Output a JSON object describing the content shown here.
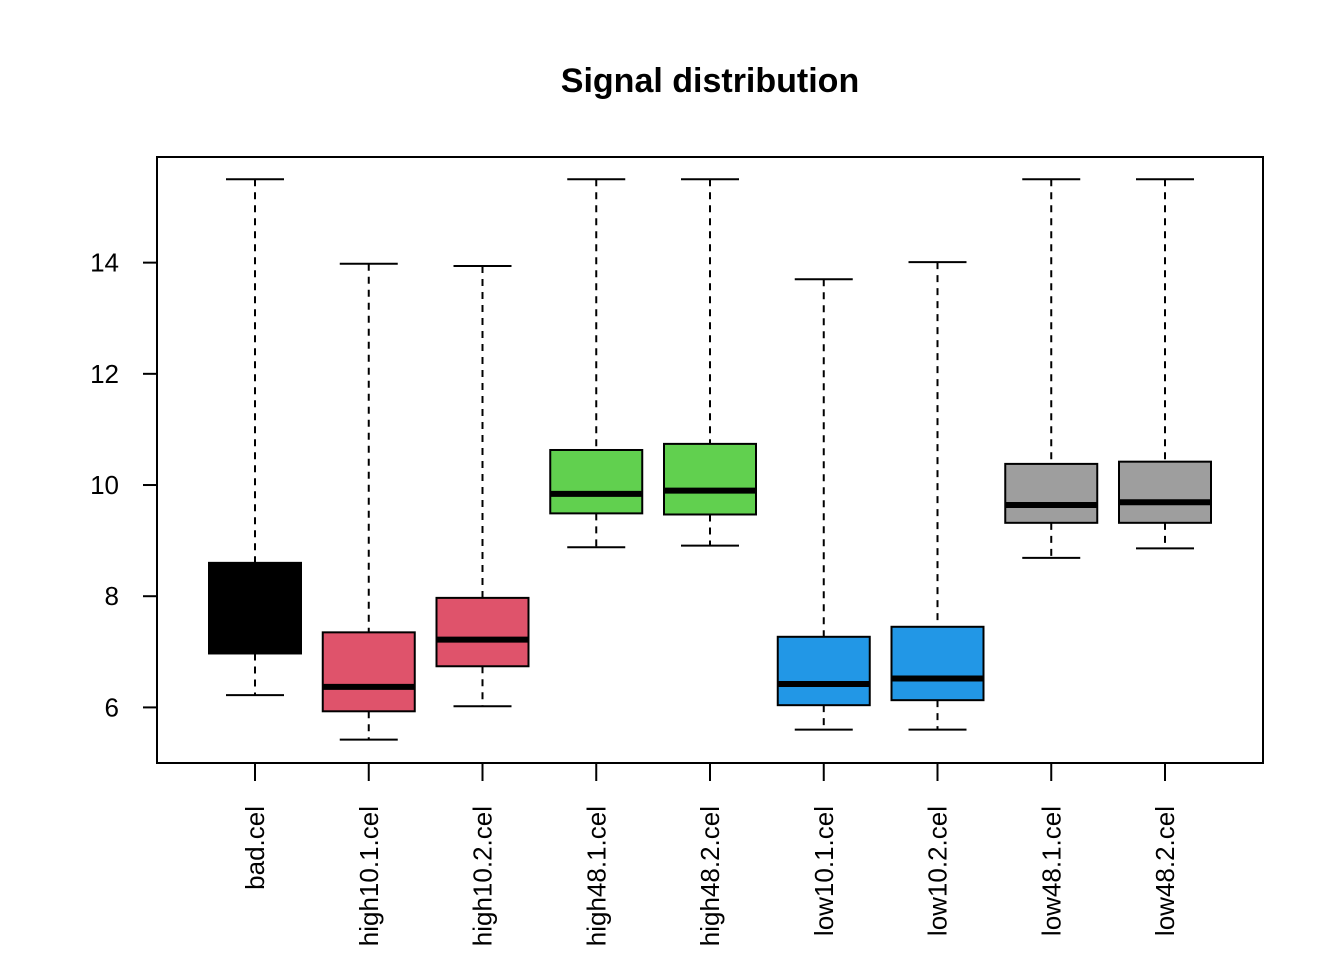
{
  "chart_data": {
    "type": "boxplot",
    "title": "Signal distribution",
    "xlabel": "",
    "ylabel": "",
    "ylim": [
      5.0,
      15.9
    ],
    "yticks": [
      6,
      8,
      10,
      12,
      14
    ],
    "grid": false,
    "legend": "none",
    "categories": [
      "bad.cel",
      "high10.1.cel",
      "high10.2.cel",
      "high48.1.cel",
      "high48.2.cel",
      "low10.1.cel",
      "low10.2.cel",
      "low48.1.cel",
      "low48.2.cel"
    ],
    "boxes": [
      {
        "min": 6.22,
        "q1": 6.97,
        "median": 7.6,
        "q3": 8.6,
        "max": 15.5,
        "color": "#000000"
      },
      {
        "min": 5.42,
        "q1": 5.93,
        "median": 6.37,
        "q3": 7.35,
        "max": 13.98,
        "color": "#DF536B"
      },
      {
        "min": 6.02,
        "q1": 6.74,
        "median": 7.22,
        "q3": 7.97,
        "max": 13.94,
        "color": "#DF536B"
      },
      {
        "min": 8.88,
        "q1": 9.49,
        "median": 9.84,
        "q3": 10.63,
        "max": 15.5,
        "color": "#61D04F"
      },
      {
        "min": 8.91,
        "q1": 9.47,
        "median": 9.9,
        "q3": 10.74,
        "max": 15.5,
        "color": "#61D04F"
      },
      {
        "min": 5.6,
        "q1": 6.04,
        "median": 6.42,
        "q3": 7.27,
        "max": 13.7,
        "color": "#2297E6"
      },
      {
        "min": 5.6,
        "q1": 6.13,
        "median": 6.52,
        "q3": 7.45,
        "max": 14.01,
        "color": "#2297E6"
      },
      {
        "min": 8.69,
        "q1": 9.32,
        "median": 9.64,
        "q3": 10.38,
        "max": 15.5,
        "color": "#9E9E9E"
      },
      {
        "min": 8.86,
        "q1": 9.32,
        "median": 9.69,
        "q3": 10.42,
        "max": 15.5,
        "color": "#9E9E9E"
      }
    ]
  }
}
